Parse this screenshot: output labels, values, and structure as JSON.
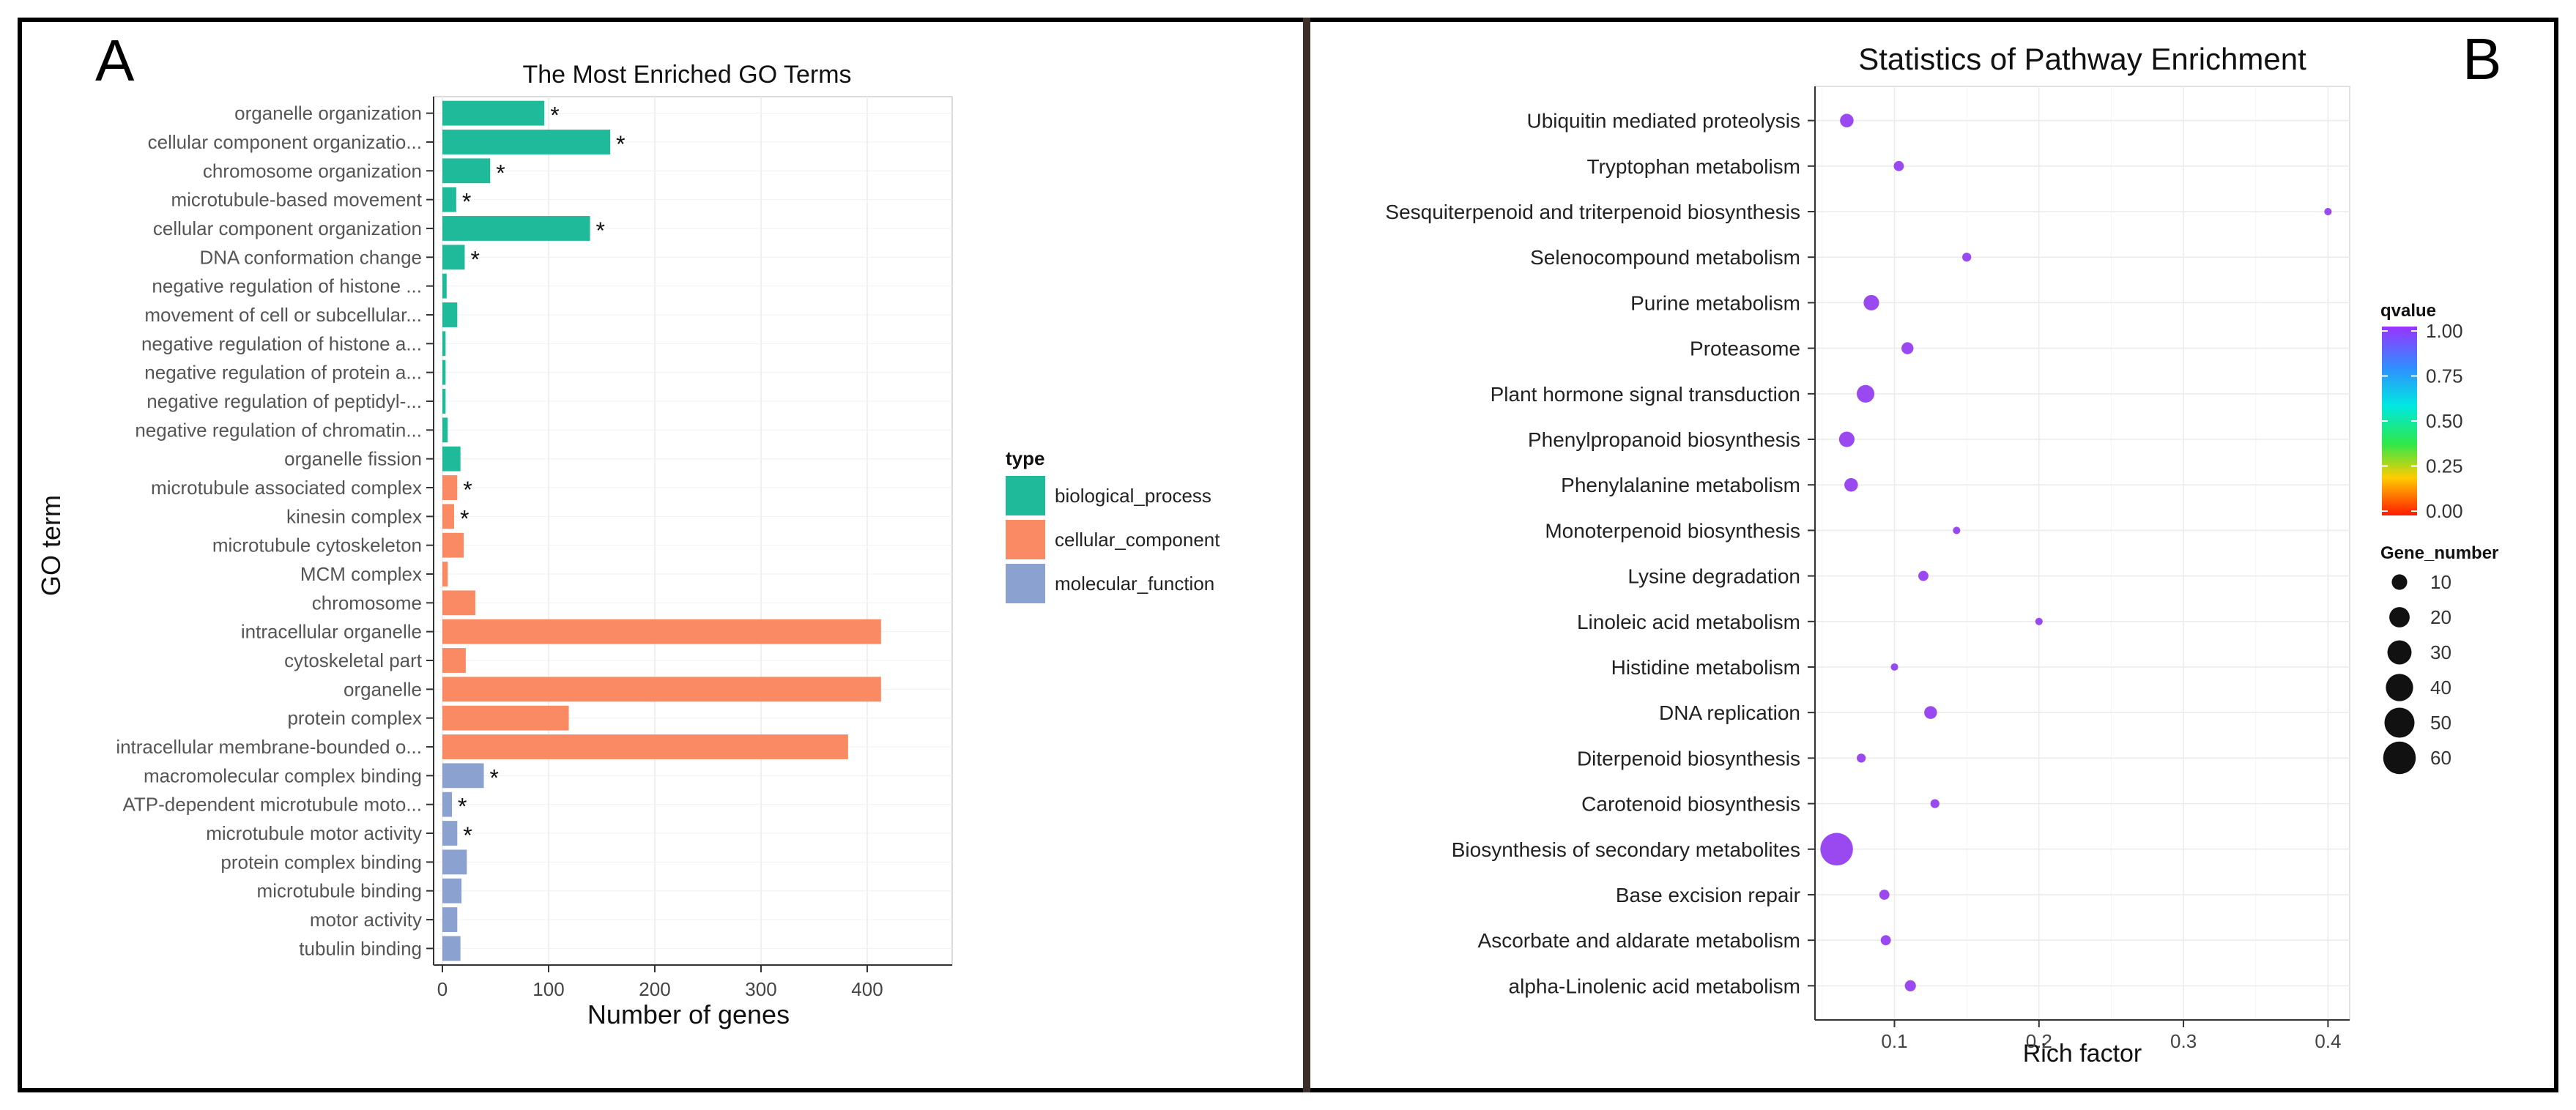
{
  "panel_a": {
    "letter": "A",
    "legend": {
      "title": "type",
      "items": [
        {
          "label": "biological_process",
          "color": "#1fba99"
        },
        {
          "label": "cellular_component",
          "color": "#fa8a63"
        },
        {
          "label": "molecular_function",
          "color": "#8ba2d0"
        }
      ]
    },
    "star": "*"
  },
  "panel_b": {
    "letter": "B",
    "color_legend_title": "qvalue",
    "color_ticks": [
      "1.00",
      "0.75",
      "0.50",
      "0.25",
      "0.00"
    ],
    "size_legend_title": "Gene_number",
    "size_ticks": [
      "10",
      "20",
      "30",
      "40",
      "50",
      "60"
    ]
  },
  "chart_data": [
    {
      "type": "bar",
      "orientation": "horizontal",
      "title": "The Most Enriched GO Terms",
      "xlabel": "Number of genes",
      "ylabel": "GO term",
      "xlim": [
        0,
        420
      ],
      "xticks": [
        "0",
        "100",
        "200",
        "300",
        "400"
      ],
      "grid": true,
      "legend": "right",
      "categories": [
        "organelle organization",
        "cellular component organizatio...",
        "chromosome organization",
        "microtubule-based movement",
        "cellular component organization",
        "DNA conformation change",
        "negative regulation of histone ...",
        "movement of cell or subcellular...",
        "negative regulation of histone a...",
        "negative regulation of protein a...",
        "negative regulation of peptidyl-...",
        "negative regulation of chromatin...",
        "organelle fission",
        "microtubule associated complex",
        "kinesin complex",
        "microtubule cytoskeleton",
        "MCM complex",
        "chromosome",
        "intracellular organelle",
        "cytoskeletal part",
        "organelle",
        "protein complex",
        "intracellular membrane-bounded o...",
        "macromolecular complex binding",
        "ATP-dependent microtubule moto...",
        "microtubule motor activity",
        "protein complex binding",
        "microtubule binding",
        "motor activity",
        "tubulin binding"
      ],
      "values": [
        96,
        158,
        45,
        13,
        139,
        21,
        4,
        14,
        3,
        3,
        3,
        5,
        17,
        14,
        11,
        20,
        5,
        31,
        413,
        22,
        413,
        119,
        382,
        39,
        9,
        14,
        23,
        18,
        14,
        17
      ],
      "types": [
        "biological_process",
        "biological_process",
        "biological_process",
        "biological_process",
        "biological_process",
        "biological_process",
        "biological_process",
        "biological_process",
        "biological_process",
        "biological_process",
        "biological_process",
        "biological_process",
        "biological_process",
        "cellular_component",
        "cellular_component",
        "cellular_component",
        "cellular_component",
        "cellular_component",
        "cellular_component",
        "cellular_component",
        "cellular_component",
        "cellular_component",
        "cellular_component",
        "molecular_function",
        "molecular_function",
        "molecular_function",
        "molecular_function",
        "molecular_function",
        "molecular_function",
        "molecular_function"
      ],
      "significant": [
        true,
        true,
        true,
        true,
        true,
        true,
        false,
        false,
        false,
        false,
        false,
        false,
        false,
        true,
        true,
        false,
        false,
        false,
        false,
        false,
        false,
        false,
        false,
        true,
        true,
        true,
        false,
        false,
        false,
        false
      ]
    },
    {
      "type": "scatter",
      "title": "Statistics of Pathway Enrichment",
      "xlabel": "Rich factor",
      "ylabel": "",
      "xlim": [
        0.045,
        0.415
      ],
      "xticks": [
        "0.1",
        "0.2",
        "0.3",
        "0.4"
      ],
      "grid": true,
      "legend": "right",
      "categories": [
        "Ubiquitin mediated proteolysis",
        "Tryptophan metabolism",
        "Sesquiterpenoid and triterpenoid biosynthesis",
        "Selenocompound metabolism",
        "Purine metabolism",
        "Proteasome",
        "Plant hormone signal transduction",
        "Phenylpropanoid biosynthesis",
        "Phenylalanine metabolism",
        "Monoterpenoid biosynthesis",
        "Lysine degradation",
        "Linoleic acid metabolism",
        "Histidine metabolism",
        "DNA replication",
        "Diterpenoid biosynthesis",
        "Carotenoid biosynthesis",
        "Biosynthesis of secondary metabolites",
        "Base excision repair",
        "Ascorbate and aldarate metabolism",
        "alpha-Linolenic acid metabolism"
      ],
      "rich_factor": [
        0.067,
        0.103,
        0.4,
        0.15,
        0.084,
        0.109,
        0.08,
        0.067,
        0.07,
        0.143,
        0.12,
        0.2,
        0.1,
        0.125,
        0.077,
        0.128,
        0.06,
        0.093,
        0.094,
        0.111
      ],
      "gene_number": [
        7,
        3,
        1,
        2,
        10,
        5,
        14,
        10,
        7,
        1,
        3,
        1,
        1,
        6,
        2,
        2,
        60,
        3,
        3,
        4
      ],
      "qvalue": [
        1,
        1,
        1,
        1,
        1,
        1,
        1,
        1,
        1,
        1,
        1,
        1,
        1,
        1,
        1,
        1,
        1,
        1,
        1,
        1
      ],
      "point_color": "#9a49f0"
    }
  ]
}
